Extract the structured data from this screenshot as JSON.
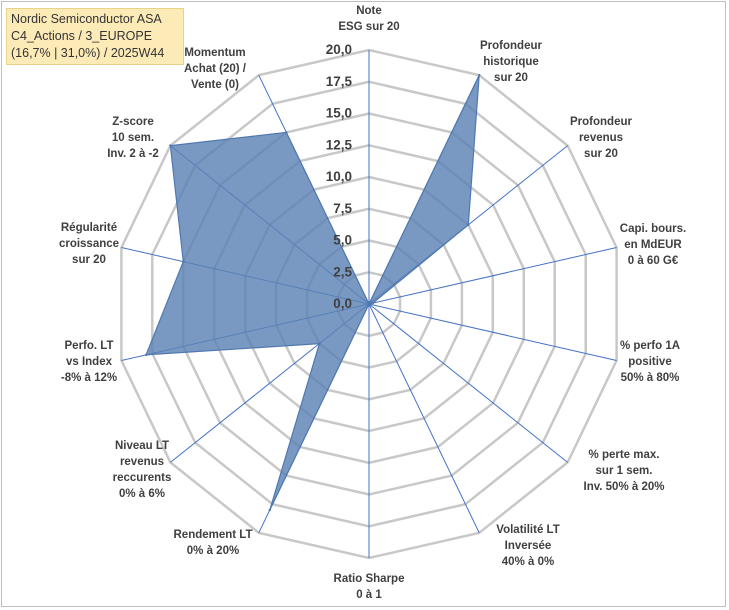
{
  "title": {
    "line1": "Nordic Semiconductor ASA",
    "line2": "C4_Actions / 3_EUROPE",
    "line3": "(16,7% | 31,0%) / 2025W44"
  },
  "colors": {
    "fill": "#5b82b5",
    "stroke": "#4f78b0",
    "grid": "#c8c8c8",
    "spoke": "#4472c4",
    "label": "#404040",
    "title_bg": "#fdebb7"
  },
  "chart_data": {
    "type": "radar",
    "rmin": 0,
    "rmax": 20,
    "tick_values": [
      0,
      2.5,
      5,
      7.5,
      10,
      12.5,
      15,
      17.5,
      20
    ],
    "tick_labels": [
      "0,0",
      "2,5",
      "5,0",
      "7,5",
      "10,0",
      "12,5",
      "15,0",
      "17,5",
      "20,0"
    ],
    "categories": [
      {
        "lines": [
          "Note",
          "ESG sur 20"
        ],
        "value": 0
      },
      {
        "lines": [
          "Profondeur",
          "historique",
          "sur 20"
        ],
        "value": 20
      },
      {
        "lines": [
          "Profondeur",
          "revenus",
          "sur 20"
        ],
        "value": 10
      },
      {
        "lines": [
          "Capi. bours.",
          "en MdEUR",
          "0 à 60 G€"
        ],
        "value": 0.3
      },
      {
        "lines": [
          "% perfo 1A",
          "positive",
          "50% à 80%"
        ],
        "value": 0
      },
      {
        "lines": [
          "% perte max.",
          "sur 1 sem.",
          "Inv. 50% à 20%"
        ],
        "value": 0
      },
      {
        "lines": [
          "Volatilité LT",
          "Inversée",
          "40% à 0%"
        ],
        "value": 0
      },
      {
        "lines": [
          "Ratio Sharpe",
          "0 à 1"
        ],
        "value": 0
      },
      {
        "lines": [
          "Rendement LT",
          "0% à 20%"
        ],
        "value": 18
      },
      {
        "lines": [
          "Niveau LT",
          "revenus",
          "reccurents",
          "0% à 6%"
        ],
        "value": 5
      },
      {
        "lines": [
          "Perfo. LT",
          "vs Index",
          "-8% à 12%"
        ],
        "value": 18
      },
      {
        "lines": [
          "Régularité",
          "croissance",
          "sur 20"
        ],
        "value": 15
      },
      {
        "lines": [
          "Z-score",
          "10 sem.",
          "Inv. 2 à -2"
        ],
        "value": 20
      },
      {
        "lines": [
          "Momentum",
          "Achat (20) /",
          "Vente (0)"
        ],
        "value": 15
      }
    ]
  }
}
